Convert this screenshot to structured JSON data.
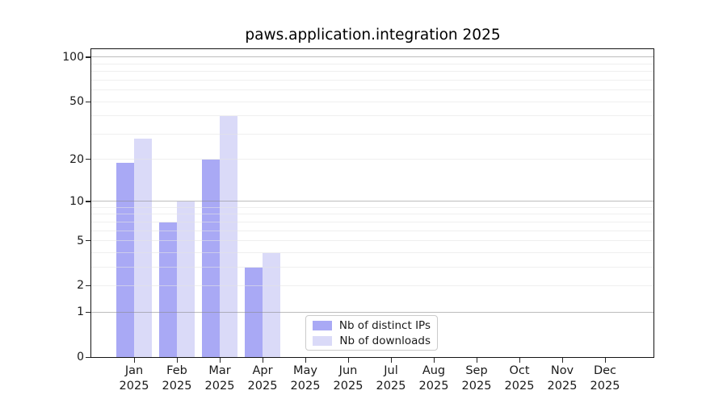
{
  "chart_data": {
    "type": "bar",
    "title": "paws.application.integration 2025",
    "categories": [
      "Jan",
      "Feb",
      "Mar",
      "Apr",
      "May",
      "Jun",
      "Jul",
      "Aug",
      "Sep",
      "Oct",
      "Nov",
      "Dec"
    ],
    "x_sublabel_year": "2025",
    "series": [
      {
        "name": "Nb of distinct IPs",
        "color": "#a9a9f5",
        "values": [
          19,
          7,
          20,
          3,
          0,
          0,
          0,
          0,
          0,
          0,
          0,
          0
        ]
      },
      {
        "name": "Nb of downloads",
        "color": "#dadaf8",
        "values": [
          28,
          10,
          40,
          4,
          0,
          0,
          0,
          0,
          0,
          0,
          0,
          0
        ]
      }
    ],
    "y_ticks": [
      0,
      1,
      2,
      5,
      10,
      20,
      50,
      100
    ],
    "y_scale": "log10(value+1)",
    "ylim": [
      0,
      100
    ],
    "grid": "horizontal",
    "legend": {
      "position": "bottom-center",
      "entries": [
        "Nb of distinct IPs",
        "Nb of downloads"
      ]
    }
  }
}
